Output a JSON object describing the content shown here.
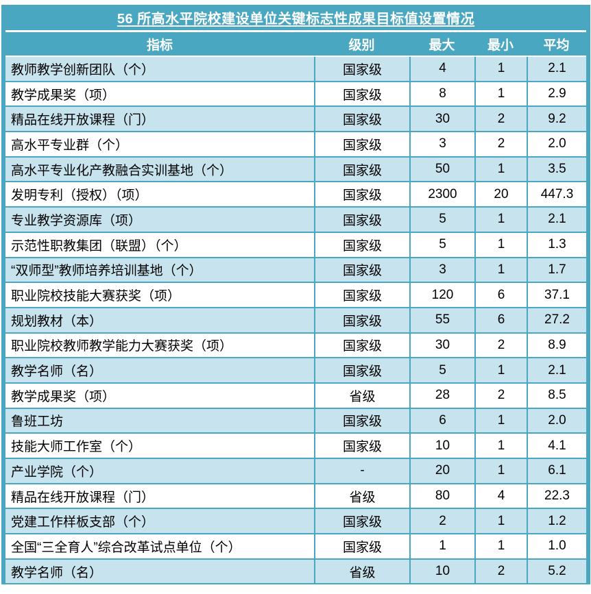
{
  "colors": {
    "teal": "#49A7C1",
    "row_alt_bg": "#C7E3EE",
    "row_bg": "#FFFFFF",
    "header_text": "#FFFFFF",
    "body_text": "#000000"
  },
  "chart_data": {
    "type": "table",
    "title": "56 所高水平院校建设单位关键标志性成果目标值设置情况",
    "columns": [
      "指标",
      "级别",
      "最大",
      "最小",
      "平均"
    ],
    "rows": [
      [
        "教师教学创新团队（个）",
        "国家级",
        "4",
        "1",
        "2.1"
      ],
      [
        "教学成果奖（项）",
        "国家级",
        "8",
        "1",
        "2.9"
      ],
      [
        "精品在线开放课程（门）",
        "国家级",
        "30",
        "2",
        "9.2"
      ],
      [
        "高水平专业群（个）",
        "国家级",
        "3",
        "2",
        "2.0"
      ],
      [
        "高水平专业化产教融合实训基地（个）",
        "国家级",
        "50",
        "1",
        "3.5"
      ],
      [
        "发明专利（授权）（项）",
        "国家级",
        "2300",
        "20",
        "447.3"
      ],
      [
        "专业教学资源库（项）",
        "国家级",
        "5",
        "1",
        "2.1"
      ],
      [
        "示范性职教集团（联盟）（个）",
        "国家级",
        "5",
        "1",
        "1.3"
      ],
      [
        "“双师型”教师培养培训基地（个）",
        "国家级",
        "3",
        "1",
        "1.7"
      ],
      [
        "职业院校技能大赛获奖（项）",
        "国家级",
        "120",
        "6",
        "37.1"
      ],
      [
        "规划教材（本）",
        "国家级",
        "55",
        "6",
        "27.2"
      ],
      [
        "职业院校教师教学能力大赛获奖（项）",
        "国家级",
        "30",
        "2",
        "8.9"
      ],
      [
        "教学名师（名）",
        "国家级",
        "5",
        "1",
        "2.1"
      ],
      [
        "教学成果奖（项）",
        "省级",
        "28",
        "2",
        "8.5"
      ],
      [
        "鲁班工坊",
        "国家级",
        "6",
        "1",
        "2.0"
      ],
      [
        "技能大师工作室（个）",
        "国家级",
        "10",
        "1",
        "4.1"
      ],
      [
        "产业学院（个）",
        "-",
        "20",
        "1",
        "6.1"
      ],
      [
        "精品在线开放课程（门）",
        "省级",
        "80",
        "4",
        "22.3"
      ],
      [
        "党建工作样板支部（个）",
        "国家级",
        "2",
        "1",
        "1.2"
      ],
      [
        "全国“三全育人”综合改革试点单位（个）",
        "国家级",
        "1",
        "1",
        "1.0"
      ],
      [
        "教学名师（名）",
        "省级",
        "10",
        "2",
        "5.2"
      ]
    ]
  }
}
